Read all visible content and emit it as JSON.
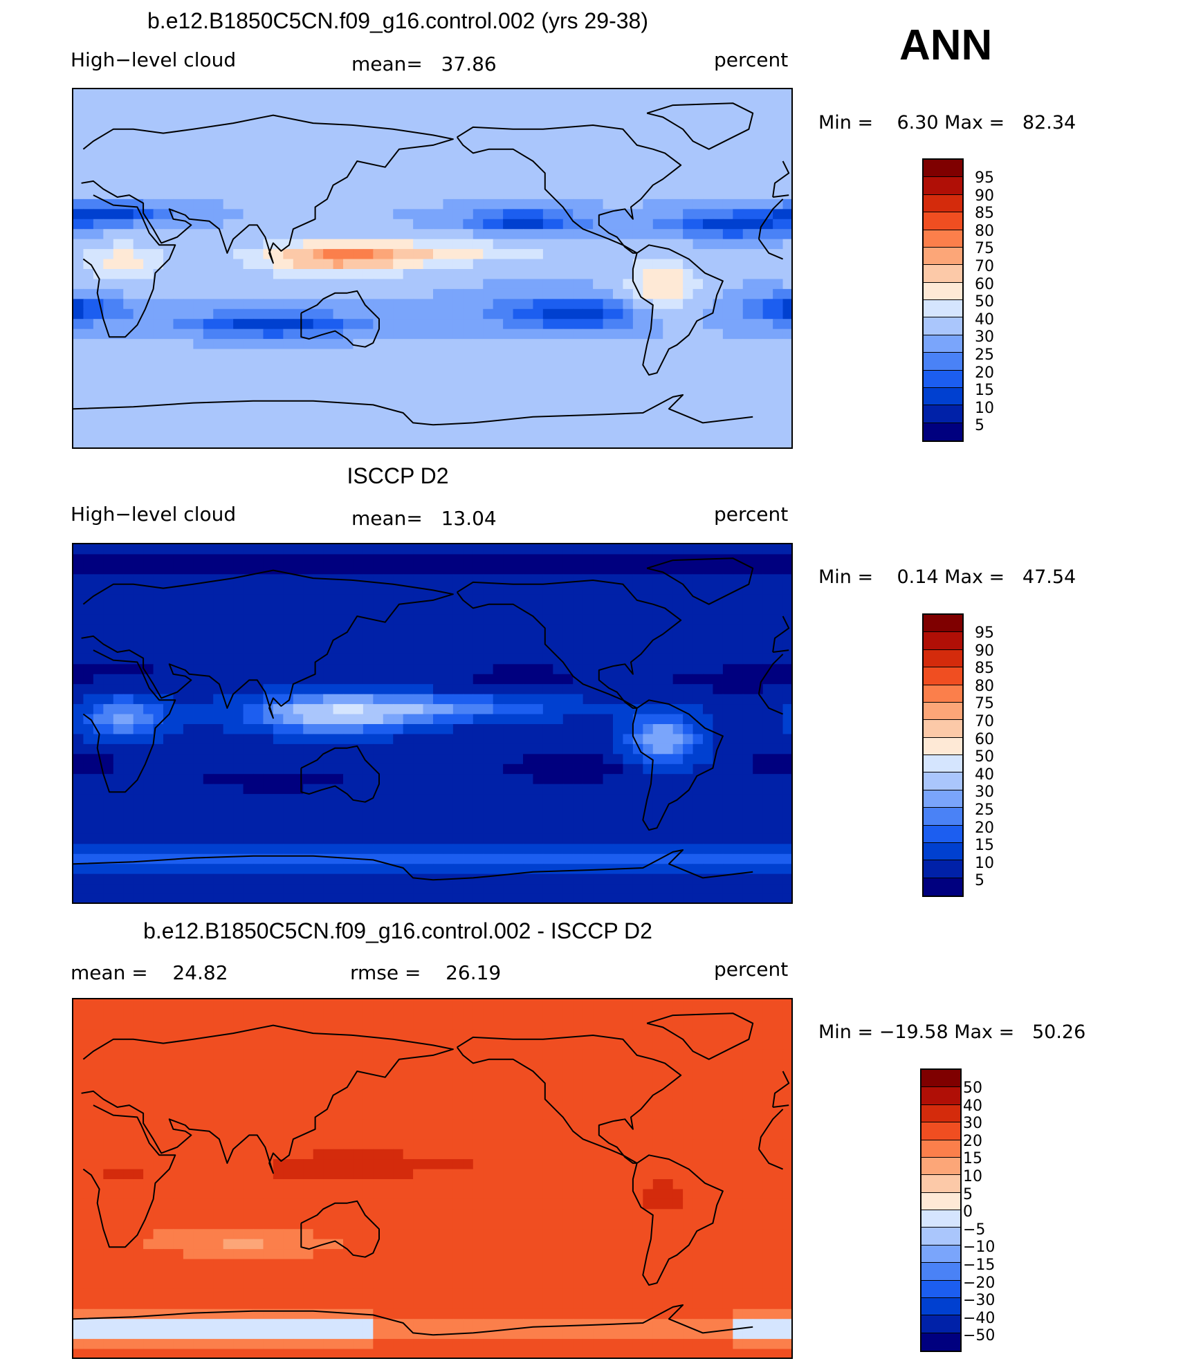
{
  "season": "ANN",
  "colors": {
    "scale_abs": [
      "#00007f",
      "#0021a8",
      "#0040d0",
      "#1c5ef0",
      "#4a82f6",
      "#7aa5fb",
      "#aac6fc",
      "#d5e5fe",
      "#fee9d6",
      "#fcc9a8",
      "#fca678",
      "#fb7f4b",
      "#f04e21",
      "#d42b0c",
      "#b00f06",
      "#7f0000"
    ],
    "scale_diff": [
      "#00007f",
      "#0021a8",
      "#0040d0",
      "#1c5ef0",
      "#4a82f6",
      "#7aa5fb",
      "#aac6fc",
      "#d5e5fe",
      "#fee9d6",
      "#fcc9a8",
      "#fca678",
      "#fb7f4b",
      "#f04e21",
      "#d42b0c",
      "#b00f06",
      "#7f0000"
    ]
  },
  "panels": [
    {
      "title": "b.e12.B1850C5CN.f09_g16.control.002 (yrs 29-38)",
      "left_label": "High−level cloud",
      "mid_label": "mean=   37.86",
      "right_label": "percent",
      "minmax": "Min =    6.30 Max =   82.34",
      "levels": [
        "95",
        "90",
        "85",
        "80",
        "75",
        "70",
        "60",
        "50",
        "40",
        "30",
        "25",
        "20",
        "15",
        "10",
        "5"
      ],
      "field": "model"
    },
    {
      "title": "ISCCP D2",
      "left_label": "High−level cloud",
      "mid_label": "mean=   13.04",
      "right_label": "percent",
      "minmax": "Min =    0.14 Max =   47.54",
      "levels": [
        "95",
        "90",
        "85",
        "80",
        "75",
        "70",
        "60",
        "50",
        "40",
        "30",
        "25",
        "20",
        "15",
        "10",
        "5"
      ],
      "field": "obs"
    },
    {
      "title": "b.e12.B1850C5CN.f09_g16.control.002 - ISCCP D2",
      "left_label": "mean =    24.82",
      "mid_label": "rmse =    26.19",
      "right_label": "percent",
      "minmax": "Min = −19.58 Max =   50.26",
      "levels": [
        "50",
        "40",
        "30",
        "20",
        "15",
        "10",
        "5",
        "0",
        "−5",
        "−10",
        "−15",
        "−20",
        "−30",
        "−40",
        "−50"
      ],
      "field": "diff"
    }
  ]
}
